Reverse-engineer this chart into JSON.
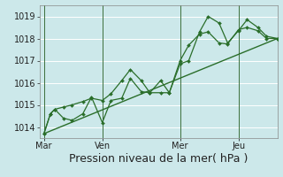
{
  "bg_color": "#cce8ea",
  "grid_color": "#ffffff",
  "line_color": "#2a6e2a",
  "marker_color": "#2a6e2a",
  "ylim": [
    1013.5,
    1019.5
  ],
  "yticks": [
    1014,
    1015,
    1016,
    1017,
    1018,
    1019
  ],
  "xlabel": "Pression niveau de la mer( hPa )",
  "xlabel_fontsize": 9,
  "tick_fontsize": 7,
  "day_labels": [
    "Mar",
    "Ven",
    "Mer",
    "Jeu"
  ],
  "day_positions": [
    0,
    27,
    63,
    90
  ],
  "vline_positions": [
    0,
    27,
    63,
    90
  ],
  "xlim": [
    -2,
    108
  ],
  "series0_x": [
    0,
    3,
    5,
    9,
    13,
    18,
    22,
    27,
    31,
    36,
    40,
    45,
    49,
    54,
    58,
    63,
    67,
    72,
    76,
    81,
    85,
    90,
    94,
    99,
    103,
    108
  ],
  "series0_y": [
    1013.7,
    1014.6,
    1014.8,
    1014.9,
    1015.0,
    1015.15,
    1015.3,
    1015.2,
    1015.5,
    1016.1,
    1016.6,
    1016.1,
    1015.55,
    1015.55,
    1015.55,
    1016.85,
    1017.0,
    1018.3,
    1019.0,
    1018.7,
    1017.8,
    1018.35,
    1018.85,
    1018.5,
    1018.1,
    1018.0
  ],
  "series1_x": [
    0,
    3,
    5,
    9,
    13,
    18,
    22,
    27,
    31,
    36,
    40,
    45,
    49,
    54,
    58,
    63,
    67,
    72,
    76,
    81,
    85,
    90,
    94,
    99,
    103,
    108
  ],
  "series1_y": [
    1013.7,
    1014.6,
    1014.8,
    1014.4,
    1014.3,
    1014.6,
    1015.35,
    1014.2,
    1015.2,
    1015.3,
    1016.2,
    1015.6,
    1015.55,
    1016.1,
    1015.55,
    1017.0,
    1017.7,
    1018.2,
    1018.3,
    1017.8,
    1017.75,
    1018.4,
    1018.5,
    1018.35,
    1018.0,
    1018.0
  ],
  "series2_x": [
    0,
    108
  ],
  "series2_y": [
    1013.7,
    1018.0
  ]
}
